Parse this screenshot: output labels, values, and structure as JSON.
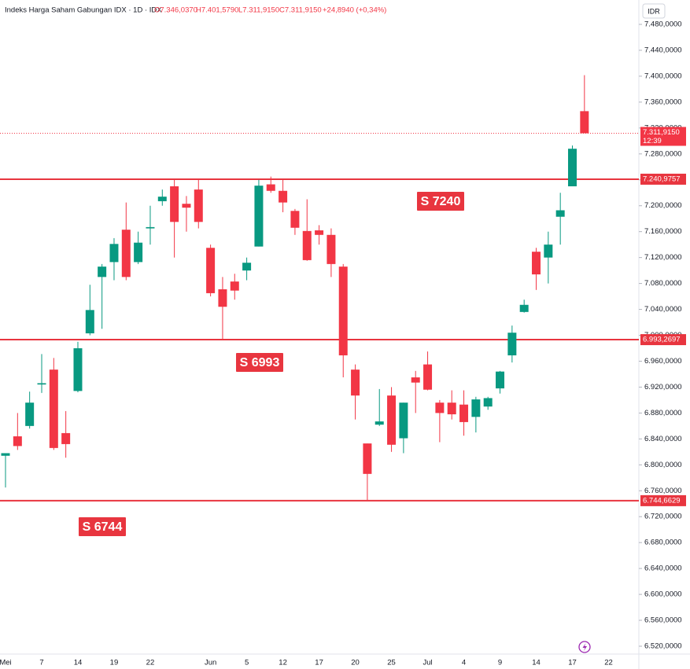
{
  "header": {
    "title": "Indeks Harga Saham Gabungan IDX · 1D · IDX",
    "open": "O7.346,0370",
    "high": "H7.401,5790",
    "low": "L7.311,9150",
    "close": "C7.311,9150",
    "change": "+24,8940 (+0,34%)",
    "currency": "IDR"
  },
  "chart_data": {
    "type": "candlestick",
    "categories": [
      "Mei",
      null,
      null,
      "7",
      null,
      null,
      "14",
      null,
      null,
      "19",
      null,
      null,
      "22",
      null,
      null,
      null,
      null,
      "Jun",
      null,
      null,
      "5",
      null,
      null,
      "12",
      null,
      null,
      "17",
      null,
      null,
      "20",
      null,
      null,
      "25",
      null,
      null,
      "Jul",
      null,
      null,
      "4",
      null,
      null,
      "9",
      null,
      null,
      "14",
      null,
      null,
      "17",
      null,
      null,
      "22"
    ],
    "open": [
      6814,
      6844,
      6860,
      6924,
      6947,
      6849,
      6914,
      7003,
      7090,
      7113,
      7163,
      7113,
      7165,
      7207,
      7230,
      7203,
      7225,
      7135,
      7071,
      7083,
      7100,
      7137,
      7233,
      7223,
      7192,
      7161,
      7162,
      7155,
      7106,
      6947,
      6833,
      6862,
      6907,
      6841,
      6935,
      6955,
      6896,
      6896,
      6893,
      6874,
      6890,
      6918,
      6969,
      7036,
      7129,
      7120,
      7183,
      7230,
      7346.037,
      null,
      null
    ],
    "high": [
      6818,
      6880,
      6913,
      6971,
      6965,
      6883,
      6990,
      7078,
      7110,
      7150,
      7205,
      7160,
      7200,
      7225,
      7240,
      7215,
      7240,
      7140,
      7090,
      7095,
      7120,
      7240,
      7245,
      7240,
      7195,
      7210,
      7170,
      7165,
      7110,
      6955,
      6833,
      6917,
      6920,
      6896,
      6945,
      6975,
      6900,
      6915,
      6915,
      6905,
      6905,
      6945,
      7015,
      7055,
      7135,
      7160,
      7220,
      7293,
      7401.579,
      null,
      null
    ],
    "low": [
      6765,
      6823,
      6856,
      6911,
      6823,
      6811,
      6912,
      7000,
      7010,
      7085,
      7085,
      7110,
      7140,
      7200,
      7120,
      7160,
      7165,
      7060,
      6993,
      7055,
      7085,
      7137,
      7220,
      7190,
      7155,
      7115,
      7140,
      7090,
      6935,
      6870,
      6744,
      6860,
      6820,
      6818,
      6880,
      6915,
      6835,
      6870,
      6845,
      6850,
      6885,
      6910,
      6958,
      7035,
      7070,
      7080,
      7140,
      7230,
      7311.915,
      null,
      null
    ],
    "close": [
      6818,
      6829,
      6896,
      6926,
      6826,
      6832,
      6980,
      7039,
      7106,
      7141,
      7090,
      7143,
      7167,
      7214,
      7175,
      7197,
      7175,
      7065,
      7044,
      7069,
      7112,
      7231,
      7223,
      7205,
      7166,
      7116,
      7155,
      7110,
      6969,
      6907,
      6786,
      6867,
      6831,
      6896,
      6927,
      6916,
      6880,
      6878,
      6866,
      6901,
      6903,
      6944,
      7004,
      7047,
      7094,
      7140,
      7193,
      7288,
      7311.915,
      null,
      null
    ],
    "up_color": "#089981",
    "down_color": "#f23645",
    "ylim": [
      6520,
      7480
    ],
    "yticks": [
      {
        "value": 6520,
        "label": "6.520,0000"
      },
      {
        "value": 6560,
        "label": "6.560,0000"
      },
      {
        "value": 6600,
        "label": "6.600,0000"
      },
      {
        "value": 6640,
        "label": "6.640,0000"
      },
      {
        "value": 6680,
        "label": "6.680,0000"
      },
      {
        "value": 6720,
        "label": "6.720,0000"
      },
      {
        "value": 6760,
        "label": "6.760,0000"
      },
      {
        "value": 6800,
        "label": "6.800,0000"
      },
      {
        "value": 6840,
        "label": "6.840,0000"
      },
      {
        "value": 6880,
        "label": "6.880,0000"
      },
      {
        "value": 6920,
        "label": "6.920,0000"
      },
      {
        "value": 6960,
        "label": "6.960,0000"
      },
      {
        "value": 7000,
        "label": "7.000,0000"
      },
      {
        "value": 7040,
        "label": "7.040,0000"
      },
      {
        "value": 7080,
        "label": "7.080,0000"
      },
      {
        "value": 7120,
        "label": "7.120,0000"
      },
      {
        "value": 7160,
        "label": "7.160,0000"
      },
      {
        "value": 7200,
        "label": "7.200,0000"
      },
      {
        "value": 7240,
        "label": "7.240,0000"
      },
      {
        "value": 7280,
        "label": "7.280,0000"
      },
      {
        "value": 7320,
        "label": "7.320,0000"
      },
      {
        "value": 7360,
        "label": "7.360,0000"
      },
      {
        "value": 7400,
        "label": "7.400,0000"
      },
      {
        "value": 7440,
        "label": "7.440,0000"
      },
      {
        "value": 7480,
        "label": "7.480,0000"
      }
    ],
    "levels": [
      {
        "value": 7240.9757,
        "label": "7.240,9757",
        "annotation": "S 7240"
      },
      {
        "value": 6993.2697,
        "label": "6.993,2697",
        "annotation": "S 6993"
      },
      {
        "value": 6744.6629,
        "label": "6.744,6629",
        "annotation": "S 6744"
      }
    ],
    "level_color": "#e8353f",
    "last_price": {
      "value": 7311.915,
      "label": "7.311,9150",
      "time": "12:39"
    }
  }
}
